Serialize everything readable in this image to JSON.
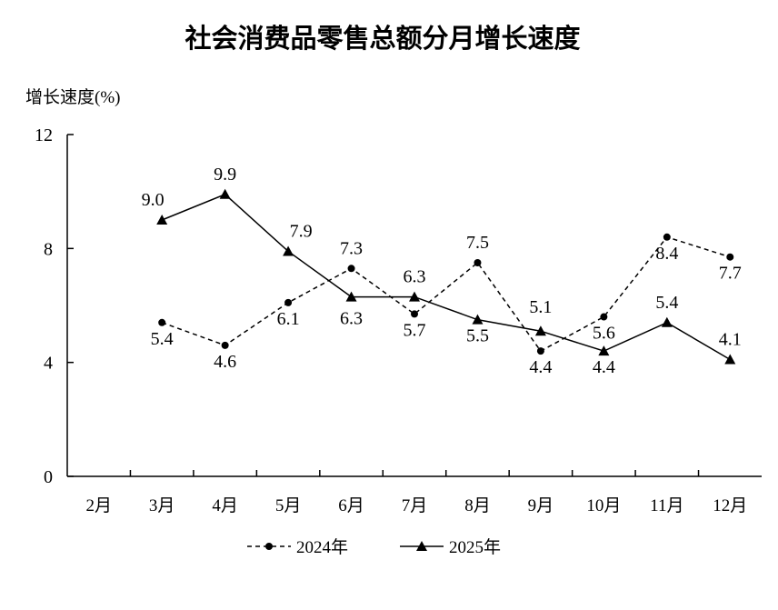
{
  "chart_data": {
    "type": "line",
    "title": "社会消费品零售总额分月增长速度",
    "ylabel": "增长速度(%)",
    "xlabel": "",
    "categories": [
      "2月",
      "3月",
      "4月",
      "5月",
      "6月",
      "7月",
      "8月",
      "9月",
      "10月",
      "11月",
      "12月"
    ],
    "ylim": [
      0,
      12
    ],
    "yticks": [
      "0",
      "4",
      "8",
      "12"
    ],
    "grid": false,
    "legend_position": "bottom-center",
    "series": [
      {
        "name": "2024年",
        "style": "dashed-circle",
        "color": "#000000",
        "values": [
          null,
          5.4,
          4.6,
          6.1,
          7.3,
          5.7,
          7.5,
          4.4,
          5.6,
          8.4,
          7.7
        ]
      },
      {
        "name": "2025年",
        "style": "solid-triangle",
        "color": "#000000",
        "values": [
          null,
          9.0,
          9.9,
          7.9,
          6.3,
          6.3,
          5.5,
          5.1,
          4.4,
          5.4,
          4.1
        ]
      }
    ]
  }
}
